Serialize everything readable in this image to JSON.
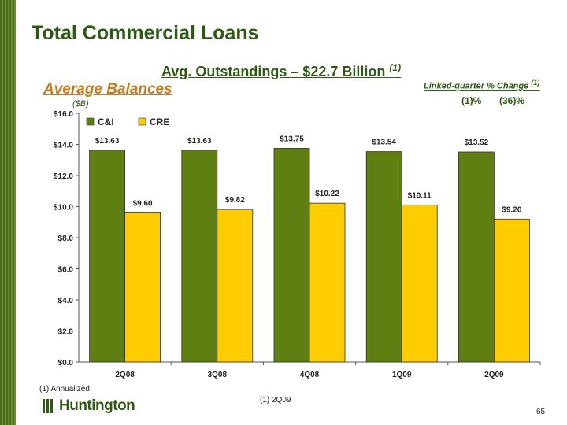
{
  "slide": {
    "title": "Total Commercial Loans",
    "subtitle": "Avg. Outstandings – $22.7 Billion",
    "subtitle_note": "(1)",
    "section_label": "Average Balances",
    "unit_label": "($B)",
    "linked_quarter_label": "Linked-quarter % Change",
    "linked_quarter_note": "(1)",
    "linked_quarter_ci": "(1)%",
    "linked_quarter_cre": "(36)%",
    "footnote_left": "(1)   Annualized",
    "footnote_center": "(1)  2Q09",
    "logo_text": "Huntington",
    "page_number": "65"
  },
  "colors": {
    "ci": "#5f7f12",
    "cre": "#ffcc00",
    "title_green": "#2e5a14",
    "accent_orange": "#c87b1d"
  },
  "chart_data": {
    "type": "bar",
    "categories": [
      "2Q08",
      "3Q08",
      "4Q08",
      "1Q09",
      "2Q09"
    ],
    "series": [
      {
        "name": "C&I",
        "values": [
          13.63,
          13.63,
          13.75,
          13.54,
          13.52
        ],
        "labels": [
          "$13.63",
          "$13.63",
          "$13.75",
          "$13.54",
          "$13.52"
        ]
      },
      {
        "name": "CRE",
        "values": [
          9.6,
          9.82,
          10.22,
          10.11,
          9.2
        ],
        "labels": [
          "$9.60",
          "$9.82",
          "$10.22",
          "$10.11",
          "$9.20"
        ]
      }
    ],
    "yticks": [
      "$0.0",
      "$2.0",
      "$4.0",
      "$6.0",
      "$8.0",
      "$10.0",
      "$12.0",
      "$14.0",
      "$16.0"
    ],
    "ylim": [
      0,
      16
    ],
    "legend_position": "top-left",
    "grid": false
  }
}
